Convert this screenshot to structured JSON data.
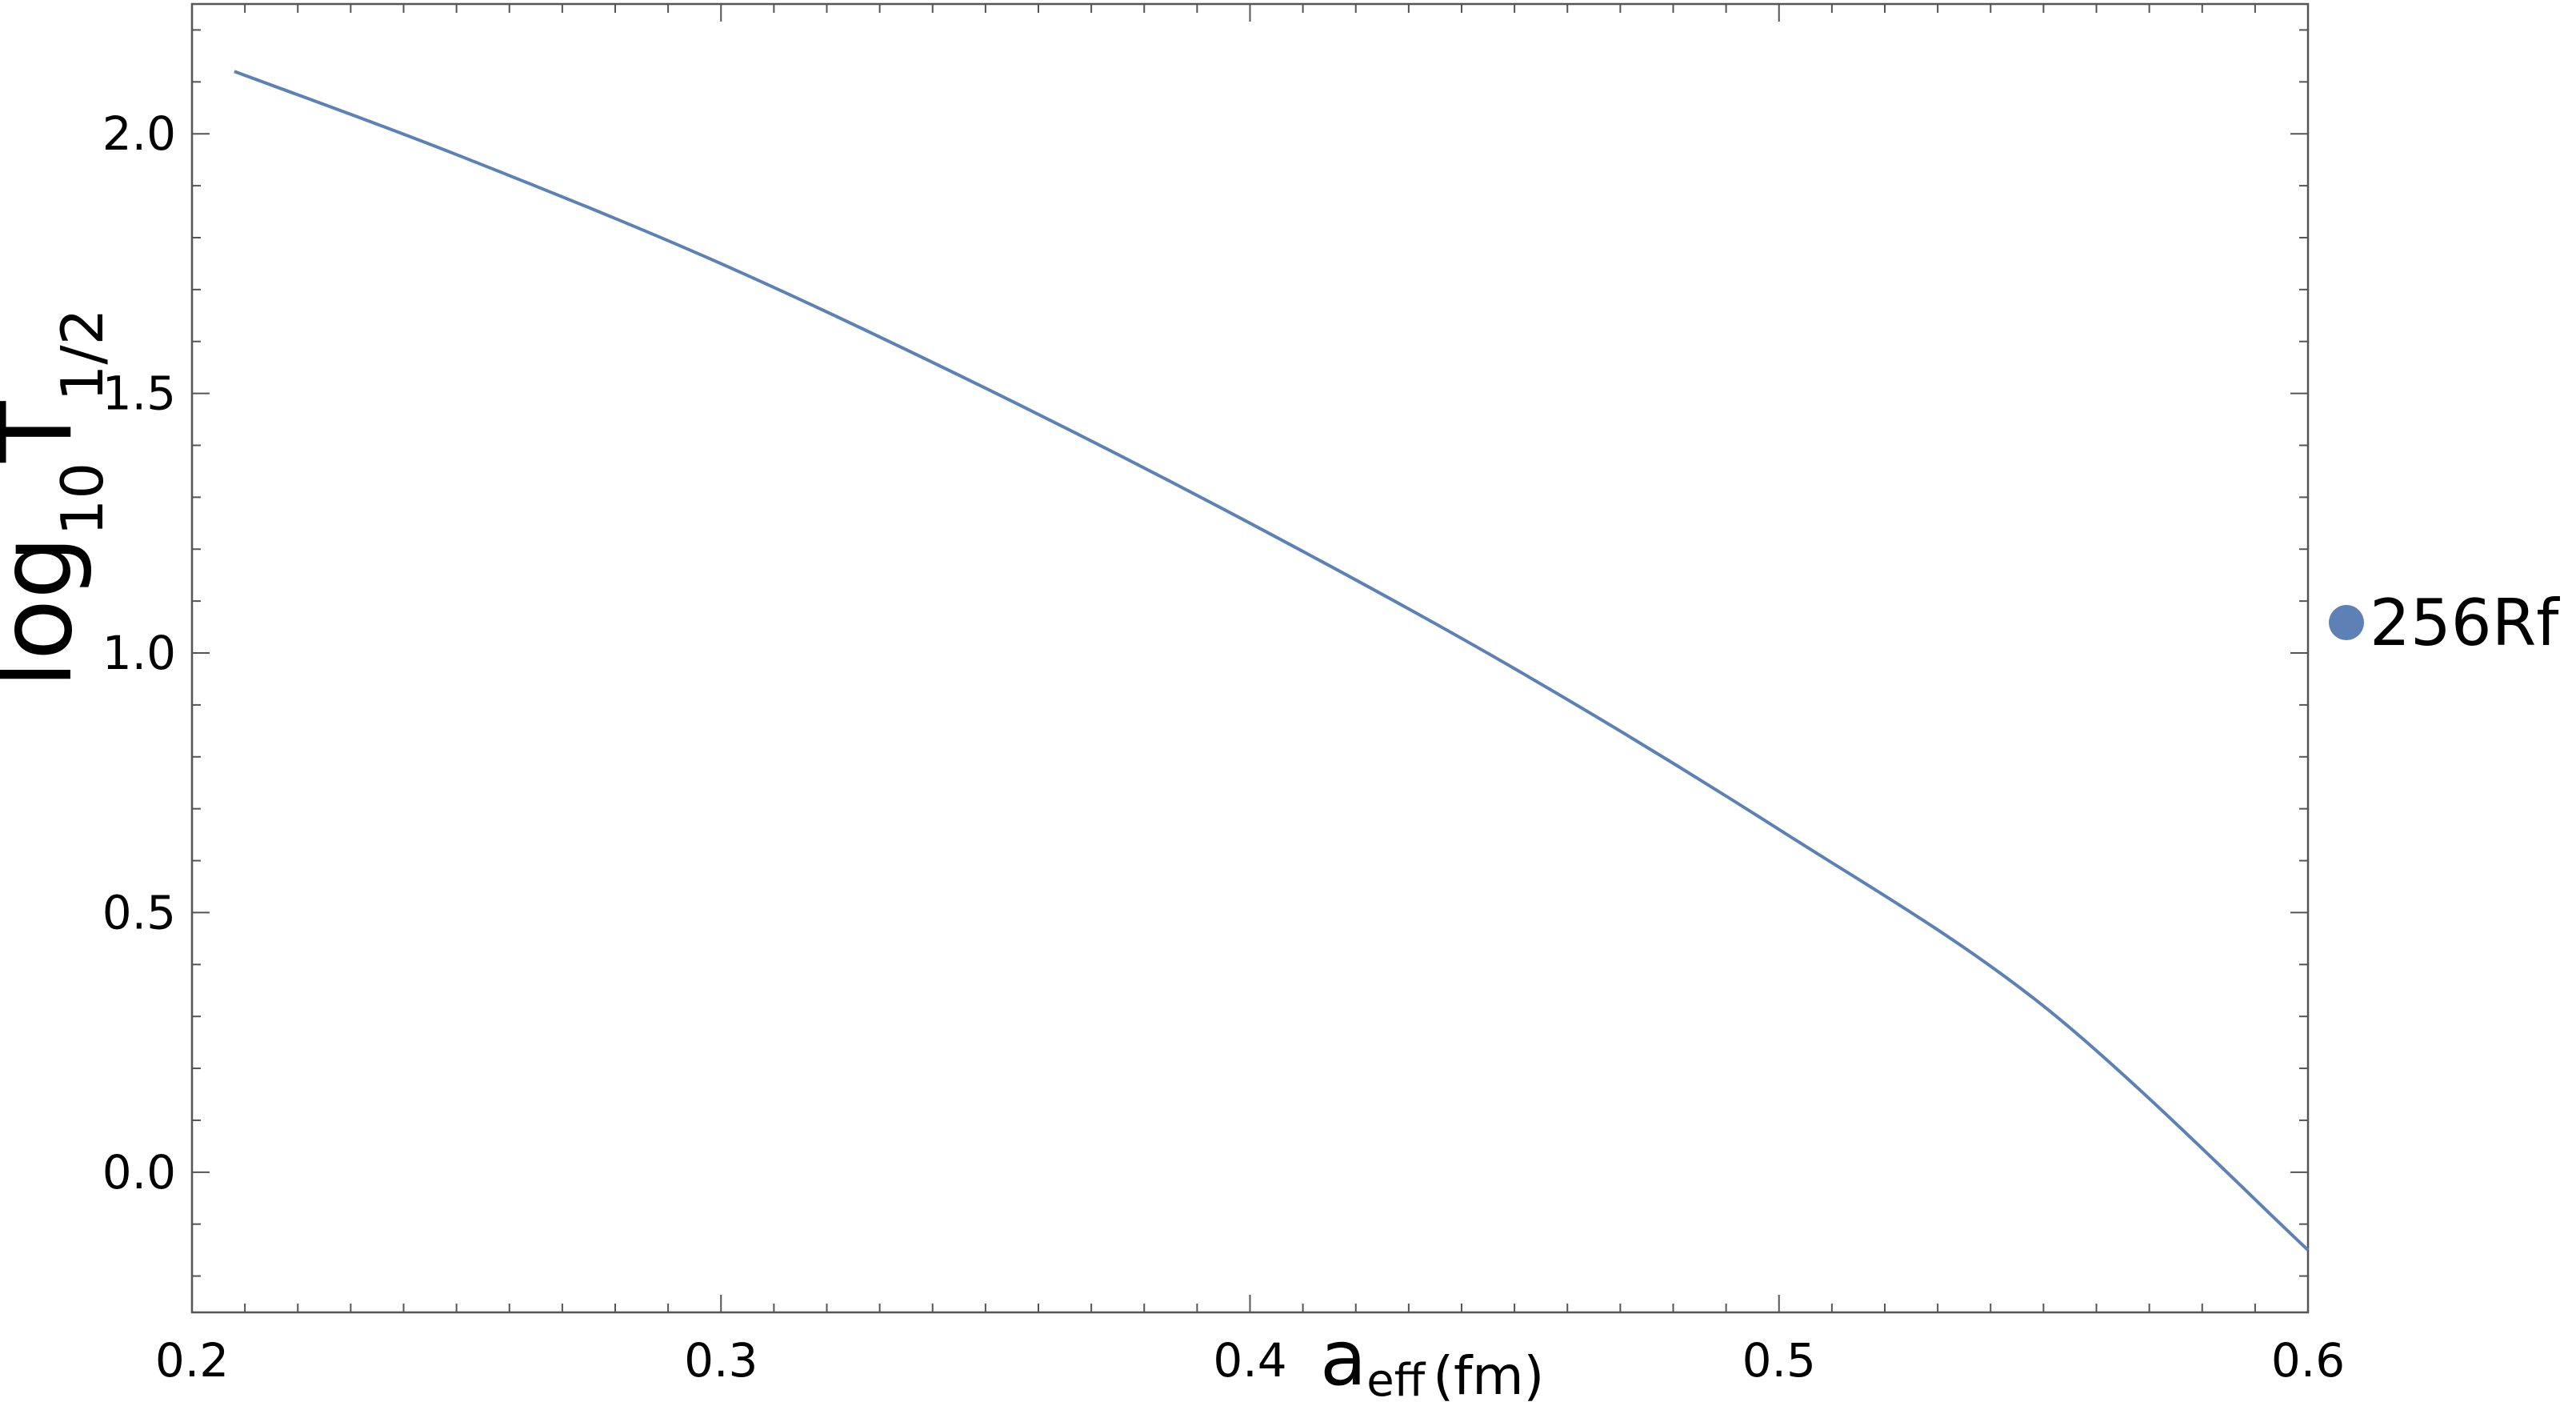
{
  "chart_data": {
    "type": "line",
    "title": "",
    "xlabel": {
      "base": "a",
      "subscript": "eff",
      "suffix": "(fm)"
    },
    "ylabel": {
      "prefix": "log",
      "prefix_sub": "10",
      "base": "T",
      "subscript": "1/2"
    },
    "xlim": [
      0.2,
      0.6
    ],
    "ylim": [
      -0.27,
      2.25
    ],
    "x_ticks": [
      0.2,
      0.3,
      0.4,
      0.5,
      0.6
    ],
    "x_tick_labels": [
      "0.2",
      "0.3",
      "0.4",
      "0.5",
      "0.6"
    ],
    "y_ticks": [
      0.0,
      0.5,
      1.0,
      1.5,
      2.0
    ],
    "y_tick_labels": [
      "0.0",
      "0.5",
      "1.0",
      "1.5",
      "2.0"
    ],
    "grid": false,
    "legend_position": "right",
    "series": [
      {
        "name": "256Rf",
        "color": "#5e81b5",
        "x": [
          0.208,
          0.25,
          0.3,
          0.35,
          0.4,
          0.45,
          0.5,
          0.55,
          0.6
        ],
        "y": [
          2.12,
          1.96,
          1.75,
          1.51,
          1.25,
          0.97,
          0.66,
          0.32,
          -0.15
        ]
      }
    ]
  }
}
